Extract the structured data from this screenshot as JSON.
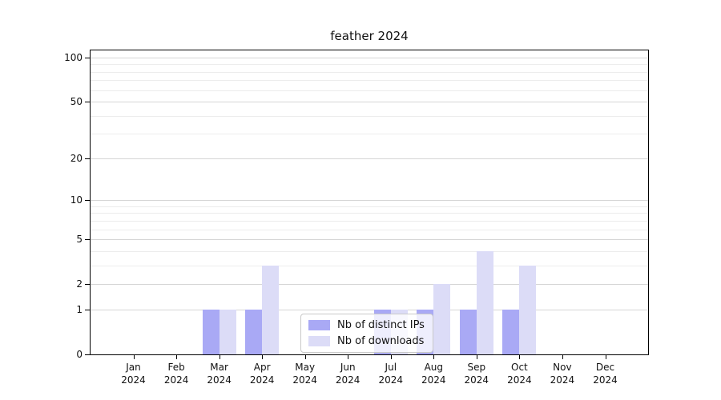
{
  "chart_data": {
    "type": "bar",
    "title": "feather 2024",
    "categories": [
      {
        "month": "Jan",
        "year": "2024"
      },
      {
        "month": "Feb",
        "year": "2024"
      },
      {
        "month": "Mar",
        "year": "2024"
      },
      {
        "month": "Apr",
        "year": "2024"
      },
      {
        "month": "May",
        "year": "2024"
      },
      {
        "month": "Jun",
        "year": "2024"
      },
      {
        "month": "Jul",
        "year": "2024"
      },
      {
        "month": "Aug",
        "year": "2024"
      },
      {
        "month": "Sep",
        "year": "2024"
      },
      {
        "month": "Oct",
        "year": "2024"
      },
      {
        "month": "Nov",
        "year": "2024"
      },
      {
        "month": "Dec",
        "year": "2024"
      }
    ],
    "series": [
      {
        "name": "Nb of distinct IPs",
        "slug": "distinct-ips",
        "color": "#a9a9f5",
        "values": [
          0,
          0,
          1,
          1,
          0,
          0,
          1,
          1,
          1,
          1,
          0,
          0
        ]
      },
      {
        "name": "Nb of downloads",
        "slug": "downloads",
        "color": "#dcdcf7",
        "values": [
          0,
          0,
          1,
          3,
          0,
          0,
          1,
          2,
          4,
          3,
          0,
          0
        ]
      }
    ],
    "yscale": "log1p",
    "ylim": [
      0,
      112
    ],
    "yticks": [
      0,
      1,
      2,
      5,
      10,
      20,
      50,
      100
    ],
    "minor_yticks": [
      3,
      4,
      6,
      7,
      8,
      9,
      30,
      40,
      60,
      70,
      80,
      90
    ],
    "grid": true,
    "legend_position": "lower-center",
    "colors": {
      "axis": "#000000",
      "major_grid": "#d6d6d6",
      "minor_grid": "#ececec",
      "text": "#111111",
      "legend_border": "#c9c9c9"
    }
  }
}
